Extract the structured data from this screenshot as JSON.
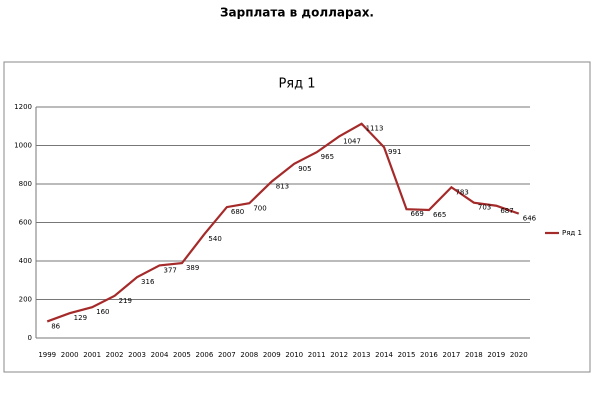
{
  "heading": "Зарплата в долларах.",
  "chart_data": {
    "type": "line",
    "title": "Ряд 1",
    "categories": [
      "1999",
      "2000",
      "2001",
      "2002",
      "2003",
      "2004",
      "2005",
      "2006",
      "2007",
      "2008",
      "2009",
      "2010",
      "2011",
      "2012",
      "2013",
      "2014",
      "2015",
      "2016",
      "2017",
      "2018",
      "2019",
      "2020"
    ],
    "series": [
      {
        "name": "Ряд 1",
        "color": "#a52a2a",
        "values": [
          86,
          129,
          160,
          219,
          316,
          377,
          389,
          540,
          680,
          700,
          813,
          905,
          965,
          1047,
          1113,
          991,
          669,
          665,
          783,
          703,
          687,
          646
        ]
      }
    ],
    "ylim": [
      0,
      1200
    ],
    "yticks": [
      0,
      200,
      400,
      600,
      800,
      1000,
      1200
    ],
    "grid": true,
    "legend": "right"
  }
}
